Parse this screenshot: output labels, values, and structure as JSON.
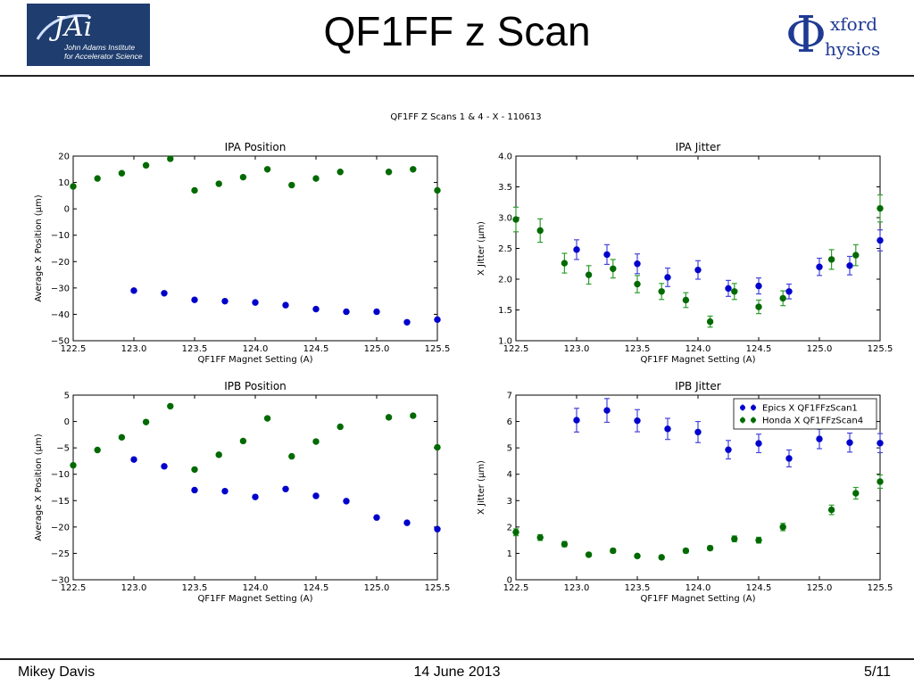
{
  "slide": {
    "title": "QF1FF z Scan",
    "footer_author": "Mikey Davis",
    "footer_date": "14 June 2013",
    "footer_page": "5/11"
  },
  "logos": {
    "jai_text_1": "John Adams Institute",
    "jai_text_2": "for Accelerator Science",
    "oxford_text_1": "xford",
    "oxford_text_2": "hysics"
  },
  "figure": {
    "suptitle": "QF1FF Z Scans 1 & 4 - X - 110613"
  },
  "colors": {
    "blue": "#0000cc",
    "green": "#006a00",
    "blue_err": "#4444dd",
    "green_err": "#2e9e2e"
  },
  "chart_data": [
    {
      "type": "scatter",
      "title": "IPA Position",
      "xlabel": "QF1FF Magnet Setting (A)",
      "ylabel": "Average X Position (μm)",
      "xlim": [
        122.5,
        125.5
      ],
      "ylim": [
        -50,
        20
      ],
      "xticks": [
        122.5,
        123.0,
        123.5,
        124.0,
        124.5,
        125.0,
        125.5
      ],
      "yticks": [
        -50,
        -40,
        -30,
        -20,
        -10,
        0,
        10,
        20
      ],
      "series": [
        {
          "color_key": "blue",
          "x": [
            123.0,
            123.25,
            123.5,
            123.75,
            124.0,
            124.25,
            124.5,
            124.75,
            125.0,
            125.25,
            125.5
          ],
          "y": [
            -31,
            -32,
            -34.5,
            -35,
            -35.5,
            -36.5,
            -38,
            -39,
            -39,
            -43,
            -42
          ]
        },
        {
          "color_key": "green",
          "x": [
            122.5,
            122.7,
            122.9,
            123.1,
            123.3,
            123.5,
            123.7,
            123.9,
            124.1,
            124.3,
            124.5,
            124.7,
            125.1,
            125.3,
            125.5
          ],
          "y": [
            8.5,
            11.5,
            13.5,
            16.5,
            19,
            7,
            9.5,
            12,
            15,
            9,
            11.5,
            14,
            14,
            15,
            7
          ]
        }
      ]
    },
    {
      "type": "scatter",
      "title": "IPA Jitter",
      "xlabel": "QF1FF Magnet Setting (A)",
      "ylabel": "X Jitter (μm)",
      "xlim": [
        122.5,
        125.5
      ],
      "ylim": [
        1.0,
        4.0
      ],
      "xticks": [
        122.5,
        123.0,
        123.5,
        124.0,
        124.5,
        125.0,
        125.5
      ],
      "yticks": [
        1.0,
        1.5,
        2.0,
        2.5,
        3.0,
        3.5,
        4.0
      ],
      "series": [
        {
          "color_key": "blue",
          "x": [
            123.0,
            123.25,
            123.5,
            123.75,
            124.0,
            124.25,
            124.5,
            124.75,
            125.0,
            125.25,
            125.5
          ],
          "y": [
            2.48,
            2.4,
            2.25,
            2.03,
            2.15,
            1.85,
            1.89,
            1.8,
            2.2,
            2.22,
            2.63
          ],
          "err": [
            0.16,
            0.16,
            0.16,
            0.15,
            0.15,
            0.13,
            0.13,
            0.12,
            0.14,
            0.15,
            0.17
          ]
        },
        {
          "color_key": "green",
          "x": [
            122.5,
            122.7,
            122.9,
            123.1,
            123.3,
            123.5,
            123.7,
            123.9,
            124.1,
            124.3,
            124.5,
            124.7,
            125.1,
            125.3,
            125.5
          ],
          "y": [
            2.97,
            2.79,
            2.26,
            2.07,
            2.17,
            1.92,
            1.8,
            1.66,
            1.31,
            1.8,
            1.55,
            1.69,
            2.32,
            2.39,
            3.15
          ],
          "err": [
            0.2,
            0.19,
            0.16,
            0.15,
            0.15,
            0.14,
            0.13,
            0.12,
            0.09,
            0.13,
            0.11,
            0.12,
            0.16,
            0.17,
            0.22
          ]
        }
      ]
    },
    {
      "type": "scatter",
      "title": "IPB Position",
      "xlabel": "QF1FF Magnet Setting (A)",
      "ylabel": "Average X Position (μm)",
      "xlim": [
        122.5,
        125.5
      ],
      "ylim": [
        -30,
        5
      ],
      "xticks": [
        122.5,
        123.0,
        123.5,
        124.0,
        124.5,
        125.0,
        125.5
      ],
      "yticks": [
        -30,
        -25,
        -20,
        -15,
        -10,
        -5,
        0,
        5
      ],
      "series": [
        {
          "color_key": "blue",
          "x": [
            123.0,
            123.25,
            123.5,
            123.75,
            124.0,
            124.25,
            124.5,
            124.75,
            125.0,
            125.25,
            125.5
          ],
          "y": [
            -7.2,
            -8.5,
            -13,
            -13.2,
            -14.3,
            -12.8,
            -14.1,
            -15.1,
            -18.2,
            -19.2,
            -20.4
          ]
        },
        {
          "color_key": "green",
          "x": [
            122.5,
            122.7,
            122.9,
            123.1,
            123.3,
            123.5,
            123.7,
            123.9,
            124.1,
            124.3,
            124.5,
            124.7,
            125.1,
            125.3,
            125.5
          ],
          "y": [
            -8.3,
            -5.4,
            -3.0,
            -0.1,
            2.9,
            -9.1,
            -6.3,
            -3.7,
            0.6,
            -6.6,
            -3.8,
            -1.0,
            0.8,
            1.1,
            -4.9
          ]
        }
      ]
    },
    {
      "type": "scatter",
      "title": "IPB Jitter",
      "xlabel": "QF1FF Magnet Setting (A)",
      "ylabel": "X Jitter (μm)",
      "xlim": [
        122.5,
        125.5
      ],
      "ylim": [
        0,
        7
      ],
      "xticks": [
        122.5,
        123.0,
        123.5,
        124.0,
        124.5,
        125.0,
        125.5
      ],
      "yticks": [
        0,
        1,
        2,
        3,
        4,
        5,
        6,
        7
      ],
      "legend": {
        "placement": "top-right",
        "entries": [
          "Epics X QF1FFzScan1",
          "Honda X QF1FFzScan4"
        ]
      },
      "series": [
        {
          "name": "Epics X QF1FFzScan1",
          "color_key": "blue",
          "x": [
            123.0,
            123.25,
            123.5,
            123.75,
            124.0,
            124.25,
            124.5,
            124.75,
            125.0,
            125.25,
            125.5
          ],
          "y": [
            6.05,
            6.42,
            6.03,
            5.72,
            5.6,
            4.93,
            5.17,
            4.6,
            5.34,
            5.2,
            5.18
          ],
          "err": [
            0.45,
            0.45,
            0.42,
            0.4,
            0.4,
            0.35,
            0.35,
            0.32,
            0.37,
            0.36,
            0.36
          ]
        },
        {
          "name": "Honda X QF1FFzScan4",
          "color_key": "green",
          "x": [
            122.5,
            122.7,
            122.9,
            123.1,
            123.3,
            123.5,
            123.7,
            123.9,
            124.1,
            124.3,
            124.5,
            124.7,
            125.1,
            125.3,
            125.5
          ],
          "y": [
            1.8,
            1.6,
            1.35,
            0.95,
            1.1,
            0.9,
            0.85,
            1.1,
            1.2,
            1.55,
            1.5,
            2.0,
            2.65,
            3.28,
            3.72
          ],
          "err": [
            0.13,
            0.11,
            0.1,
            0.07,
            0.08,
            0.06,
            0.06,
            0.08,
            0.08,
            0.11,
            0.11,
            0.14,
            0.18,
            0.22,
            0.25
          ]
        }
      ]
    }
  ]
}
